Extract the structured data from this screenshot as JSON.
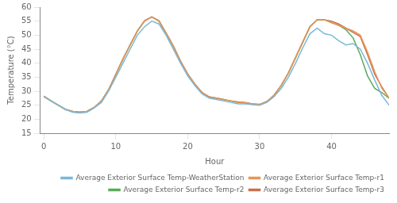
{
  "chart_data": {
    "type": "line",
    "xlabel": "Hour",
    "ylabel": "Temperature (°C)",
    "xlim": [
      -0.5,
      48
    ],
    "xticks": [
      0,
      10,
      20,
      30,
      40
    ],
    "ylim": [
      15,
      60
    ],
    "yticks": [
      15,
      20,
      25,
      30,
      35,
      40,
      45,
      50,
      55,
      60
    ],
    "grid": false,
    "legend": "lower right",
    "x": [
      0,
      1,
      2,
      3,
      4,
      5,
      6,
      7,
      8,
      9,
      10,
      11,
      12,
      13,
      14,
      15,
      16,
      17,
      18,
      19,
      20,
      21,
      22,
      23,
      24,
      25,
      26,
      27,
      28,
      29,
      30,
      31,
      32,
      33,
      34,
      35,
      36,
      37,
      38,
      39,
      40,
      41,
      42,
      43,
      44,
      45,
      46,
      47,
      48
    ],
    "series": [
      {
        "name": "Average Exterior Surface Temp-WeatherStation",
        "color": "#7ab8d8",
        "values": [
          28.0,
          26.5,
          25.0,
          23.5,
          22.5,
          22.2,
          22.5,
          24.0,
          26.0,
          30.0,
          35.0,
          40.0,
          45.0,
          50.0,
          53.0,
          55.0,
          54.0,
          50.0,
          45.0,
          40.0,
          35.5,
          32.0,
          29.0,
          27.5,
          27.0,
          26.5,
          26.0,
          25.5,
          25.5,
          25.2,
          25.0,
          26.0,
          28.0,
          31.0,
          35.0,
          40.0,
          45.5,
          50.5,
          52.5,
          50.5,
          50.0,
          48.0,
          46.5,
          47.0,
          45.0,
          40.0,
          34.0,
          28.5,
          25.0
        ]
      },
      {
        "name": "Average Exterior Surface Temp-r1",
        "color": "#e8955a",
        "values": [
          28.2,
          26.5,
          25.0,
          23.5,
          22.8,
          22.5,
          22.8,
          24.2,
          26.5,
          30.5,
          36.0,
          41.5,
          46.5,
          51.5,
          55.0,
          56.5,
          55.0,
          50.5,
          46.0,
          40.5,
          36.0,
          32.5,
          29.5,
          27.8,
          27.5,
          27.0,
          26.5,
          26.0,
          25.8,
          25.4,
          25.2,
          26.2,
          28.5,
          32.0,
          36.5,
          42.0,
          47.5,
          53.0,
          55.5,
          55.5,
          54.5,
          53.5,
          52.5,
          51.5,
          50.0,
          44.0,
          37.0,
          31.0,
          27.5
        ]
      },
      {
        "name": "Average Exterior Surface Temp-r2",
        "color": "#5aaa5a",
        "values": [
          28.2,
          26.5,
          25.0,
          23.5,
          22.8,
          22.5,
          22.8,
          24.2,
          26.5,
          30.5,
          36.0,
          41.5,
          46.5,
          51.5,
          55.0,
          56.5,
          55.0,
          50.5,
          46.0,
          40.5,
          36.0,
          32.5,
          29.5,
          27.8,
          27.5,
          27.0,
          26.5,
          26.0,
          25.8,
          25.4,
          25.2,
          26.2,
          28.5,
          32.0,
          36.5,
          42.0,
          47.5,
          53.0,
          55.5,
          55.5,
          54.5,
          53.5,
          52.0,
          49.0,
          43.0,
          35.5,
          31.0,
          29.5,
          27.5
        ]
      },
      {
        "name": "Average Exterior Surface Temp-r3",
        "color": "#c87050",
        "values": [
          28.2,
          26.6,
          25.0,
          23.5,
          22.8,
          22.5,
          22.8,
          24.2,
          26.5,
          30.5,
          36.0,
          41.5,
          46.5,
          51.5,
          55.2,
          56.5,
          55.2,
          50.8,
          46.2,
          40.8,
          36.2,
          32.5,
          29.5,
          28.0,
          27.5,
          27.0,
          26.5,
          26.2,
          26.0,
          25.5,
          25.3,
          26.3,
          28.5,
          32.0,
          36.5,
          42.0,
          47.5,
          53.0,
          55.5,
          55.5,
          55.0,
          54.0,
          52.5,
          51.0,
          49.5,
          43.0,
          36.0,
          31.5,
          27.5
        ]
      }
    ]
  }
}
